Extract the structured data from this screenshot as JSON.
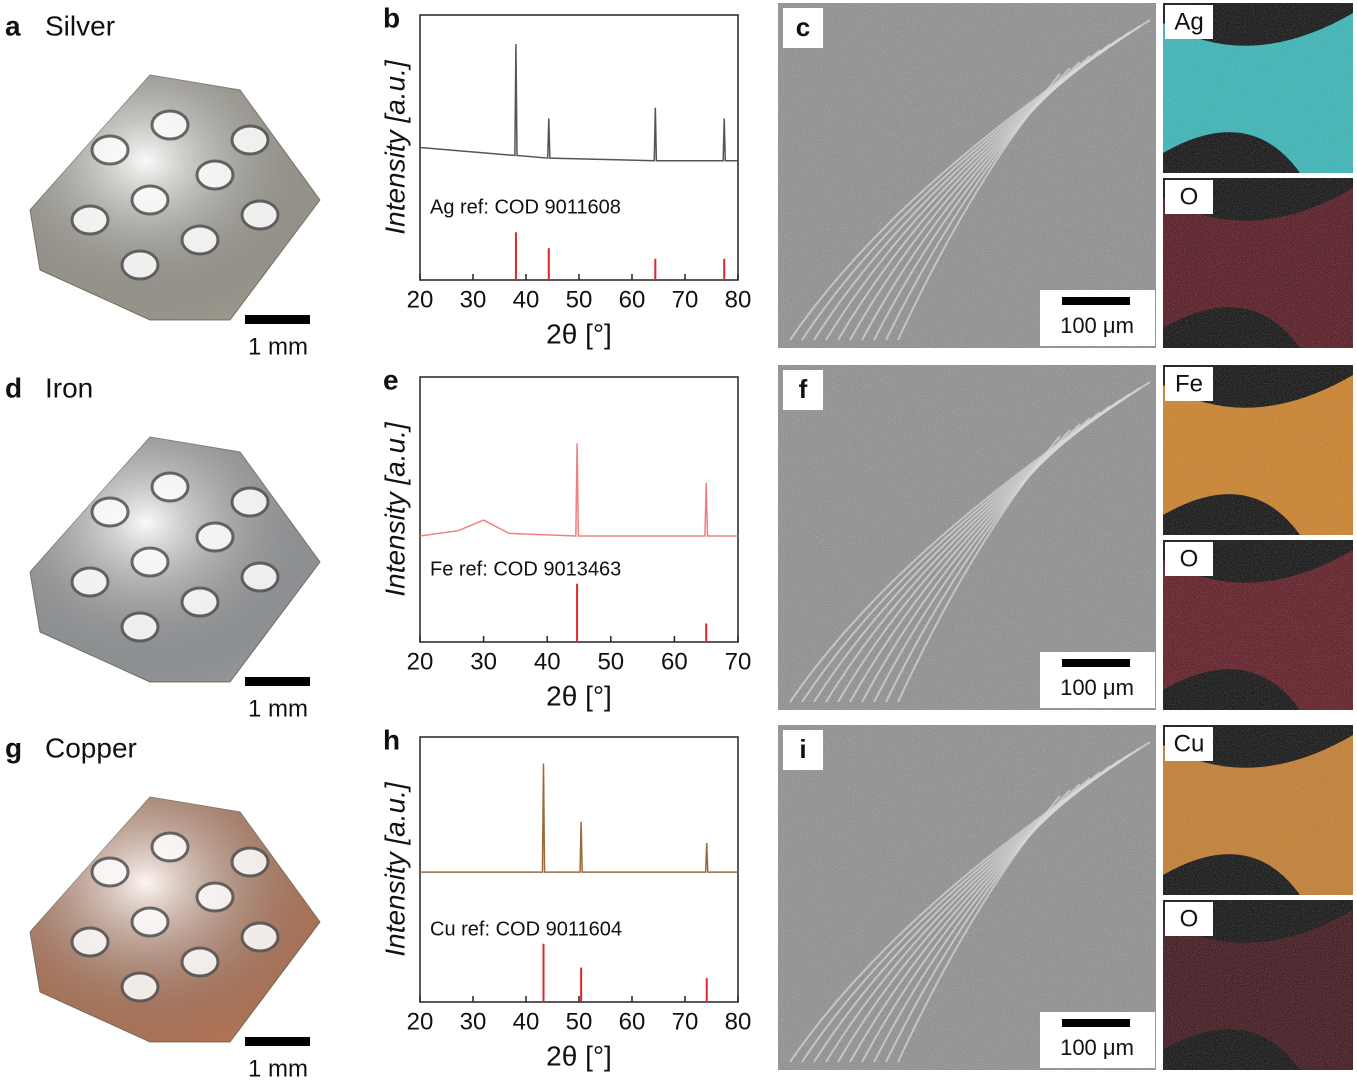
{
  "panels": [
    {
      "photo": {
        "letter": "a",
        "title": "Silver",
        "scale": "1 mm",
        "color": "#cfcbbd"
      },
      "sem": {
        "letter": "c",
        "scale": "100 μm"
      },
      "maps": [
        {
          "label": "Ag",
          "color": "#35c9cc"
        },
        {
          "label": "O",
          "color": "#a8142a"
        }
      ]
    },
    {
      "photo": {
        "letter": "d",
        "title": "Iron",
        "scale": "1 mm",
        "color": "#c4c8cc"
      },
      "sem": {
        "letter": "f",
        "scale": "100 μm"
      },
      "maps": [
        {
          "label": "Fe",
          "color": "#e38b22"
        },
        {
          "label": "O",
          "color": "#c01a30"
        }
      ]
    },
    {
      "photo": {
        "letter": "g",
        "title": "Copper",
        "scale": "1 mm",
        "color": "#ec9a72"
      },
      "sem": {
        "letter": "i",
        "scale": "100 μm"
      },
      "maps": [
        {
          "label": "Cu",
          "color": "#d9862a"
        },
        {
          "label": "O",
          "color": "#701020"
        }
      ]
    }
  ],
  "chart_data": [
    {
      "type": "line",
      "letter": "b",
      "ylabel": "Intensity [a.u.]",
      "xlabel": "2θ [°]",
      "ref_label": "Ag ref: COD 9011608",
      "color": "#555555",
      "ref_color": "#e0242c",
      "xlim": [
        20,
        80
      ],
      "ylim": [
        0,
        1
      ],
      "xticks": [
        20,
        30,
        40,
        50,
        60,
        70,
        80
      ],
      "x": [
        20,
        37.9,
        38.1,
        38.3,
        44.1,
        44.3,
        44.5,
        64.2,
        64.4,
        64.6,
        77.2,
        77.4,
        77.6,
        80
      ],
      "values": [
        0.5,
        0.47,
        0.89,
        0.47,
        0.46,
        0.61,
        0.46,
        0.45,
        0.65,
        0.45,
        0.45,
        0.61,
        0.45,
        0.45
      ],
      "ref_x": [
        38.1,
        44.3,
        64.4,
        77.4
      ],
      "ref_values": [
        0.18,
        0.12,
        0.08,
        0.08
      ]
    },
    {
      "type": "line",
      "letter": "e",
      "ylabel": "Intensity [a.u.]",
      "xlabel": "2θ [°]",
      "ref_label": "Fe ref: COD 9013463",
      "color": "#f08080",
      "ref_color": "#e0242c",
      "xlim": [
        20,
        70
      ],
      "ylim": [
        0,
        1
      ],
      "xticks": [
        20,
        30,
        40,
        50,
        60,
        70
      ],
      "x": [
        20,
        26,
        30,
        34,
        44.5,
        44.7,
        44.9,
        64.8,
        65,
        65.2,
        70
      ],
      "values": [
        0.4,
        0.42,
        0.46,
        0.41,
        0.4,
        0.75,
        0.4,
        0.4,
        0.6,
        0.4,
        0.4
      ],
      "ref_x": [
        44.7,
        65
      ],
      "ref_values": [
        0.22,
        0.07
      ]
    },
    {
      "type": "line",
      "letter": "h",
      "ylabel": "Intensity [a.u.]",
      "xlabel": "2θ [°]",
      "ref_label": "Cu ref: COD 9011604",
      "color": "#9a6a3a",
      "ref_color": "#e0242c",
      "xlim": [
        20,
        80
      ],
      "ylim": [
        0,
        1
      ],
      "xticks": [
        20,
        30,
        40,
        50,
        60,
        70,
        80
      ],
      "x": [
        20,
        43.1,
        43.3,
        43.5,
        50.2,
        50.4,
        50.6,
        73.9,
        74.1,
        74.3,
        80
      ],
      "values": [
        0.49,
        0.49,
        0.9,
        0.49,
        0.49,
        0.68,
        0.49,
        0.49,
        0.6,
        0.49,
        0.49
      ],
      "ref_x": [
        43.3,
        50.4,
        74.1
      ],
      "ref_values": [
        0.22,
        0.13,
        0.09
      ]
    }
  ]
}
